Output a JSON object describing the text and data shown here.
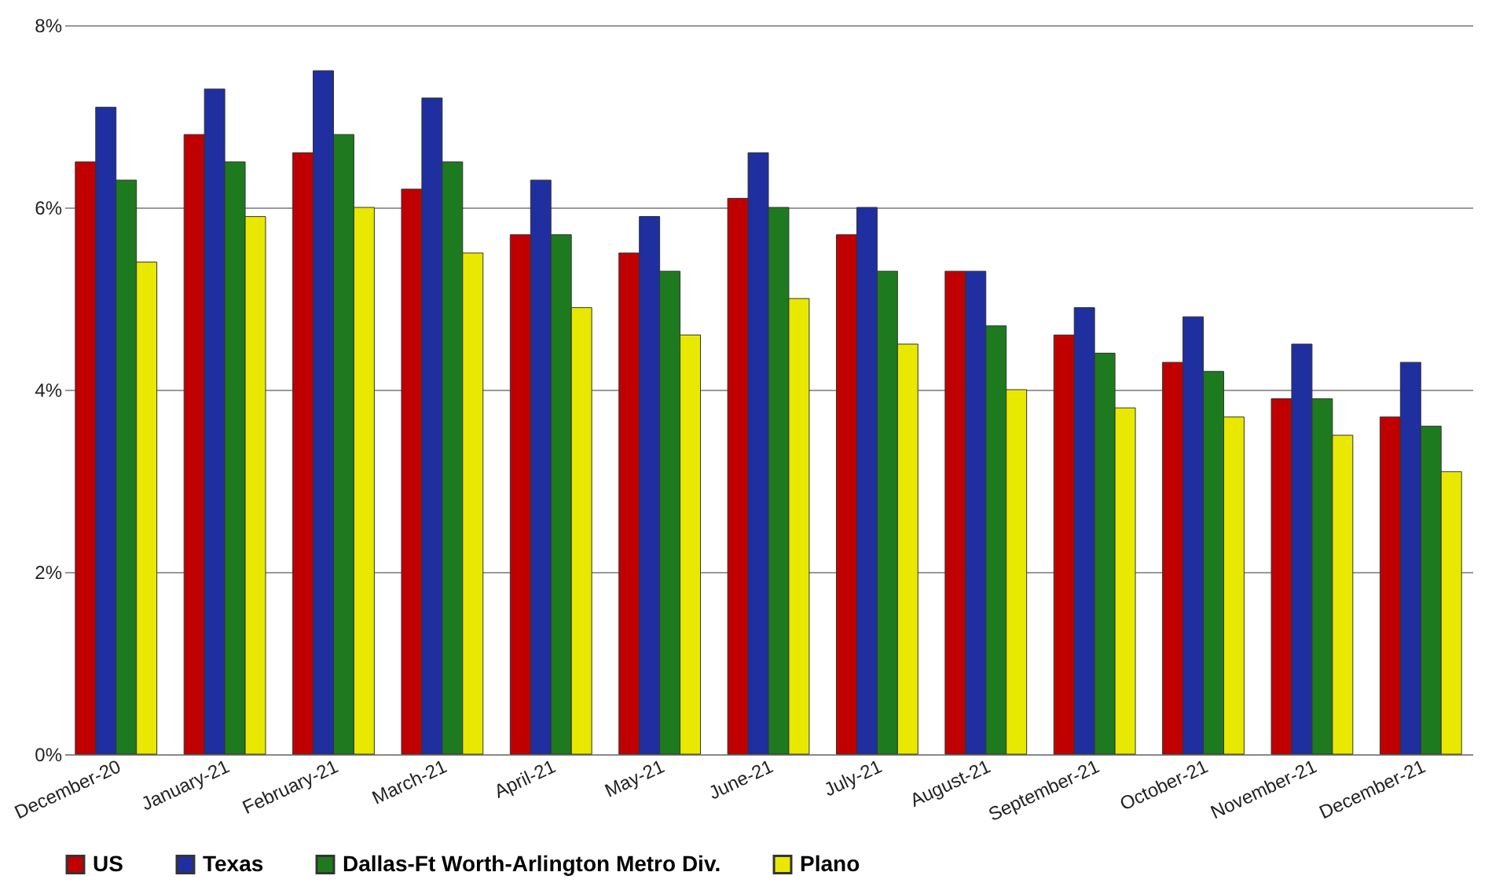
{
  "chart_data": {
    "type": "bar",
    "categories": [
      "December-20",
      "January-21",
      "February-21",
      "March-21",
      "April-21",
      "May-21",
      "June-21",
      "July-21",
      "August-21",
      "September-21",
      "October-21",
      "November-21",
      "December-21"
    ],
    "series": [
      {
        "name": "US",
        "color": "#c00000",
        "values": [
          6.5,
          6.8,
          6.6,
          6.2,
          5.7,
          5.5,
          6.1,
          5.7,
          5.3,
          4.6,
          4.3,
          3.9,
          3.7
        ]
      },
      {
        "name": "Texas",
        "color": "#1f2f9f",
        "values": [
          7.1,
          7.3,
          7.5,
          7.2,
          6.3,
          5.9,
          6.6,
          6.0,
          5.3,
          4.9,
          4.8,
          4.5,
          4.3
        ]
      },
      {
        "name": "Dallas-Ft Worth-Arlington Metro Div.",
        "color": "#1e7a1e",
        "values": [
          6.3,
          6.5,
          6.8,
          6.5,
          5.7,
          5.3,
          6.0,
          5.3,
          4.7,
          4.4,
          4.2,
          3.9,
          3.6
        ]
      },
      {
        "name": "Plano",
        "color": "#e8e800",
        "values": [
          5.4,
          5.9,
          6.0,
          5.5,
          4.9,
          4.6,
          5.0,
          4.5,
          4.0,
          3.8,
          3.7,
          3.5,
          3.1
        ]
      }
    ],
    "ylim": [
      0,
      8
    ],
    "yticks": [
      {
        "value": 0,
        "label": "0%"
      },
      {
        "value": 2,
        "label": "2%"
      },
      {
        "value": 4,
        "label": "4%"
      },
      {
        "value": 6,
        "label": "6%"
      },
      {
        "value": 8,
        "label": "8%"
      }
    ],
    "grid": "y",
    "legend": "bottom"
  }
}
